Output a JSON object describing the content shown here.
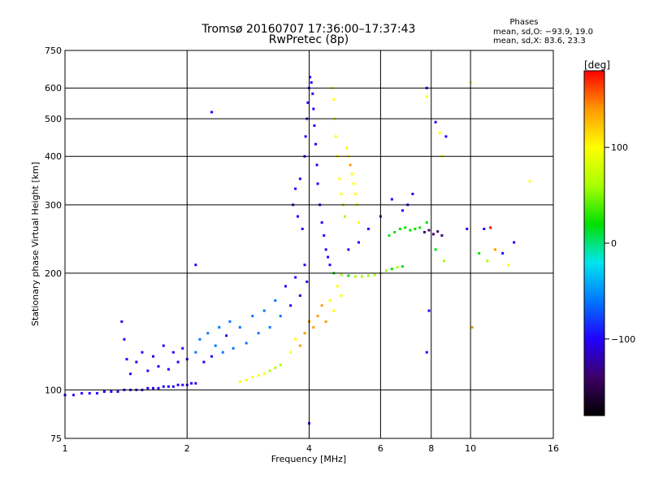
{
  "chart_data": {
    "type": "scatter",
    "title": "Tromsø 20160707 17:36:00–17:37:43",
    "subtitle": "RwPretec (8p)",
    "stats": {
      "heading": "Phases",
      "line1": "mean, sd,O: −93.9, 19.0",
      "line2": "mean, sd,X:  83.6, 23.3"
    },
    "xlabel": "Frequency [MHz]",
    "ylabel": "Stationary phase Virtual Height [km]",
    "x_scale": "log2",
    "y_scale": "log",
    "xlim": [
      1,
      16
    ],
    "ylim": [
      75,
      750
    ],
    "x_ticks": [
      1,
      2,
      4,
      6,
      8,
      10,
      16
    ],
    "x_tick_labels": [
      "1",
      "2",
      "4",
      "6",
      "8",
      "10",
      "16"
    ],
    "y_ticks": [
      75,
      100,
      200,
      300,
      400,
      500,
      600,
      750
    ],
    "y_tick_labels": [
      "75",
      "100",
      "200",
      "300",
      "400",
      "500",
      "600",
      "750"
    ],
    "grid": true,
    "colorbar": {
      "label": "[deg]",
      "range": [
        -180,
        180
      ],
      "ticks": [
        100,
        0,
        -100
      ],
      "tick_labels": [
        "100",
        "0",
        "−100"
      ],
      "colors": [
        "#000000",
        "#3d0066",
        "#2200ff",
        "#0077ff",
        "#00e5ee",
        "#00e000",
        "#a8ff00",
        "#ffff00",
        "#ff9900",
        "#ff0000"
      ]
    },
    "points": [
      [
        1.0,
        97,
        -110
      ],
      [
        1.05,
        97,
        -112
      ],
      [
        1.1,
        98,
        -108
      ],
      [
        1.15,
        98,
        -111
      ],
      [
        1.2,
        98,
        -105
      ],
      [
        1.25,
        99,
        -110
      ],
      [
        1.3,
        99,
        -108
      ],
      [
        1.35,
        99,
        -112
      ],
      [
        1.4,
        100,
        -107
      ],
      [
        1.45,
        100,
        -110
      ],
      [
        1.5,
        100,
        -106
      ],
      [
        1.55,
        100,
        -110
      ],
      [
        1.6,
        101,
        -109
      ],
      [
        1.65,
        101,
        -112
      ],
      [
        1.7,
        101,
        -108
      ],
      [
        1.75,
        102,
        -110
      ],
      [
        1.8,
        102,
        -106
      ],
      [
        1.85,
        102,
        -111
      ],
      [
        1.9,
        103,
        -107
      ],
      [
        1.95,
        103,
        -110
      ],
      [
        2.0,
        103,
        -108
      ],
      [
        2.05,
        104,
        -105
      ],
      [
        2.1,
        104,
        -111
      ],
      [
        1.38,
        150,
        -100
      ],
      [
        1.4,
        135,
        -95
      ],
      [
        1.42,
        120,
        -98
      ],
      [
        1.45,
        110,
        -102
      ],
      [
        1.5,
        118,
        -92
      ],
      [
        1.55,
        125,
        -96
      ],
      [
        1.6,
        112,
        -100
      ],
      [
        1.65,
        122,
        -94
      ],
      [
        1.7,
        115,
        -98
      ],
      [
        1.75,
        130,
        -90
      ],
      [
        1.8,
        113,
        -104
      ],
      [
        1.85,
        125,
        -96
      ],
      [
        1.9,
        118,
        -100
      ],
      [
        1.95,
        128,
        -92
      ],
      [
        2.0,
        120,
        -98
      ],
      [
        2.1,
        125,
        -80
      ],
      [
        2.15,
        135,
        -75
      ],
      [
        2.2,
        118,
        -85
      ],
      [
        2.25,
        140,
        -78
      ],
      [
        2.3,
        122,
        -84
      ],
      [
        2.35,
        130,
        -70
      ],
      [
        2.4,
        145,
        -80
      ],
      [
        2.45,
        125,
        -76
      ],
      [
        2.5,
        138,
        -82
      ],
      [
        2.55,
        150,
        -70
      ],
      [
        2.6,
        128,
        -60
      ],
      [
        2.7,
        145,
        -55
      ],
      [
        2.8,
        132,
        -45
      ],
      [
        2.9,
        155,
        -65
      ],
      [
        3.0,
        140,
        -70
      ],
      [
        3.1,
        160,
        -75
      ],
      [
        3.2,
        145,
        -60
      ],
      [
        3.3,
        170,
        -80
      ],
      [
        3.4,
        155,
        -70
      ],
      [
        3.5,
        185,
        -82
      ],
      [
        3.6,
        165,
        -90
      ],
      [
        3.7,
        195,
        -88
      ],
      [
        3.8,
        175,
        -92
      ],
      [
        3.9,
        210,
        -95
      ],
      [
        3.95,
        190,
        -90
      ],
      [
        2.7,
        105,
        90
      ],
      [
        2.8,
        106,
        100
      ],
      [
        2.9,
        108,
        110
      ],
      [
        3.0,
        109,
        95
      ],
      [
        3.1,
        110,
        80
      ],
      [
        3.2,
        112,
        70
      ],
      [
        3.3,
        114,
        60
      ],
      [
        3.4,
        116,
        75
      ],
      [
        3.6,
        125,
        100
      ],
      [
        3.7,
        135,
        110
      ],
      [
        3.8,
        130,
        120
      ],
      [
        3.9,
        140,
        130
      ],
      [
        4.0,
        150,
        140
      ],
      [
        4.1,
        145,
        150
      ],
      [
        4.2,
        155,
        130
      ],
      [
        4.3,
        165,
        150
      ],
      [
        4.4,
        150,
        120
      ],
      [
        4.5,
        170,
        110
      ],
      [
        4.6,
        160,
        100
      ],
      [
        4.7,
        185,
        90
      ],
      [
        4.8,
        175,
        80
      ],
      [
        3.65,
        300,
        -100
      ],
      [
        3.7,
        330,
        -95
      ],
      [
        3.75,
        280,
        -105
      ],
      [
        3.8,
        350,
        -100
      ],
      [
        3.85,
        260,
        -98
      ],
      [
        3.9,
        400,
        -102
      ],
      [
        3.92,
        450,
        -100
      ],
      [
        3.95,
        500,
        -104
      ],
      [
        3.97,
        550,
        -100
      ],
      [
        4.0,
        600,
        -103
      ],
      [
        4.02,
        640,
        -100
      ],
      [
        4.05,
        620,
        -104
      ],
      [
        4.08,
        580,
        -101
      ],
      [
        4.1,
        530,
        -99
      ],
      [
        4.12,
        480,
        -103
      ],
      [
        4.15,
        430,
        -100
      ],
      [
        4.18,
        380,
        -97
      ],
      [
        4.2,
        340,
        -101
      ],
      [
        4.25,
        300,
        -100
      ],
      [
        4.3,
        270,
        -98
      ],
      [
        4.35,
        250,
        -102
      ],
      [
        4.4,
        230,
        -100
      ],
      [
        4.45,
        220,
        -99
      ],
      [
        4.5,
        210,
        -101
      ],
      [
        4.55,
        600,
        80
      ],
      [
        4.6,
        560,
        85
      ],
      [
        4.62,
        500,
        90
      ],
      [
        4.65,
        450,
        95
      ],
      [
        4.7,
        400,
        90
      ],
      [
        4.75,
        350,
        85
      ],
      [
        4.8,
        320,
        80
      ],
      [
        4.85,
        300,
        75
      ],
      [
        4.9,
        280,
        70
      ],
      [
        4.95,
        420,
        115
      ],
      [
        5.0,
        400,
        110
      ],
      [
        5.05,
        380,
        120
      ],
      [
        5.1,
        360,
        105
      ],
      [
        5.15,
        340,
        100
      ],
      [
        5.2,
        320,
        90
      ],
      [
        5.25,
        300,
        85
      ],
      [
        5.3,
        270,
        80
      ],
      [
        4.6,
        200,
        30
      ],
      [
        4.8,
        198,
        40
      ],
      [
        5.0,
        197,
        35
      ],
      [
        5.2,
        196,
        50
      ],
      [
        5.4,
        196,
        45
      ],
      [
        5.6,
        197,
        55
      ],
      [
        5.8,
        198,
        40
      ],
      [
        6.0,
        200,
        50
      ],
      [
        6.2,
        203,
        45
      ],
      [
        6.4,
        205,
        35
      ],
      [
        6.6,
        207,
        40
      ],
      [
        6.8,
        208,
        30
      ],
      [
        6.3,
        250,
        20
      ],
      [
        6.5,
        255,
        25
      ],
      [
        6.7,
        260,
        30
      ],
      [
        6.9,
        262,
        20
      ],
      [
        7.1,
        258,
        15
      ],
      [
        7.3,
        260,
        25
      ],
      [
        7.5,
        262,
        20
      ],
      [
        7.7,
        255,
        -130
      ],
      [
        7.9,
        258,
        -135
      ],
      [
        8.1,
        252,
        -128
      ],
      [
        8.3,
        256,
        -132
      ],
      [
        8.5,
        250,
        -130
      ],
      [
        6.8,
        290,
        -100
      ],
      [
        7.0,
        300,
        -95
      ],
      [
        7.2,
        320,
        -102
      ],
      [
        6.4,
        310,
        -98
      ],
      [
        6.0,
        280,
        -100
      ],
      [
        5.6,
        260,
        -97
      ],
      [
        5.3,
        240,
        -103
      ],
      [
        5.0,
        230,
        -100
      ],
      [
        2.3,
        520,
        -100
      ],
      [
        2.1,
        210,
        -100
      ],
      [
        4.0,
        82,
        -100
      ],
      [
        7.8,
        600,
        -100
      ],
      [
        7.8,
        570,
        80
      ],
      [
        8.2,
        490,
        -100
      ],
      [
        8.4,
        460,
        100
      ],
      [
        8.7,
        450,
        -100
      ],
      [
        8.5,
        400,
        90
      ],
      [
        7.8,
        270,
        20
      ],
      [
        8.2,
        230,
        30
      ],
      [
        8.6,
        215,
        40
      ],
      [
        7.9,
        160,
        -100
      ],
      [
        7.8,
        125,
        -100
      ],
      [
        10.0,
        620,
        90
      ],
      [
        10.1,
        145,
        150
      ],
      [
        9.8,
        260,
        -95
      ],
      [
        10.5,
        225,
        0
      ],
      [
        10.8,
        260,
        -100
      ],
      [
        11.0,
        215,
        50
      ],
      [
        11.2,
        262,
        170
      ],
      [
        11.5,
        230,
        120
      ],
      [
        12.0,
        225,
        -100
      ],
      [
        12.4,
        210,
        100
      ],
      [
        14.0,
        345,
        110
      ],
      [
        12.8,
        240,
        -110
      ]
    ]
  }
}
